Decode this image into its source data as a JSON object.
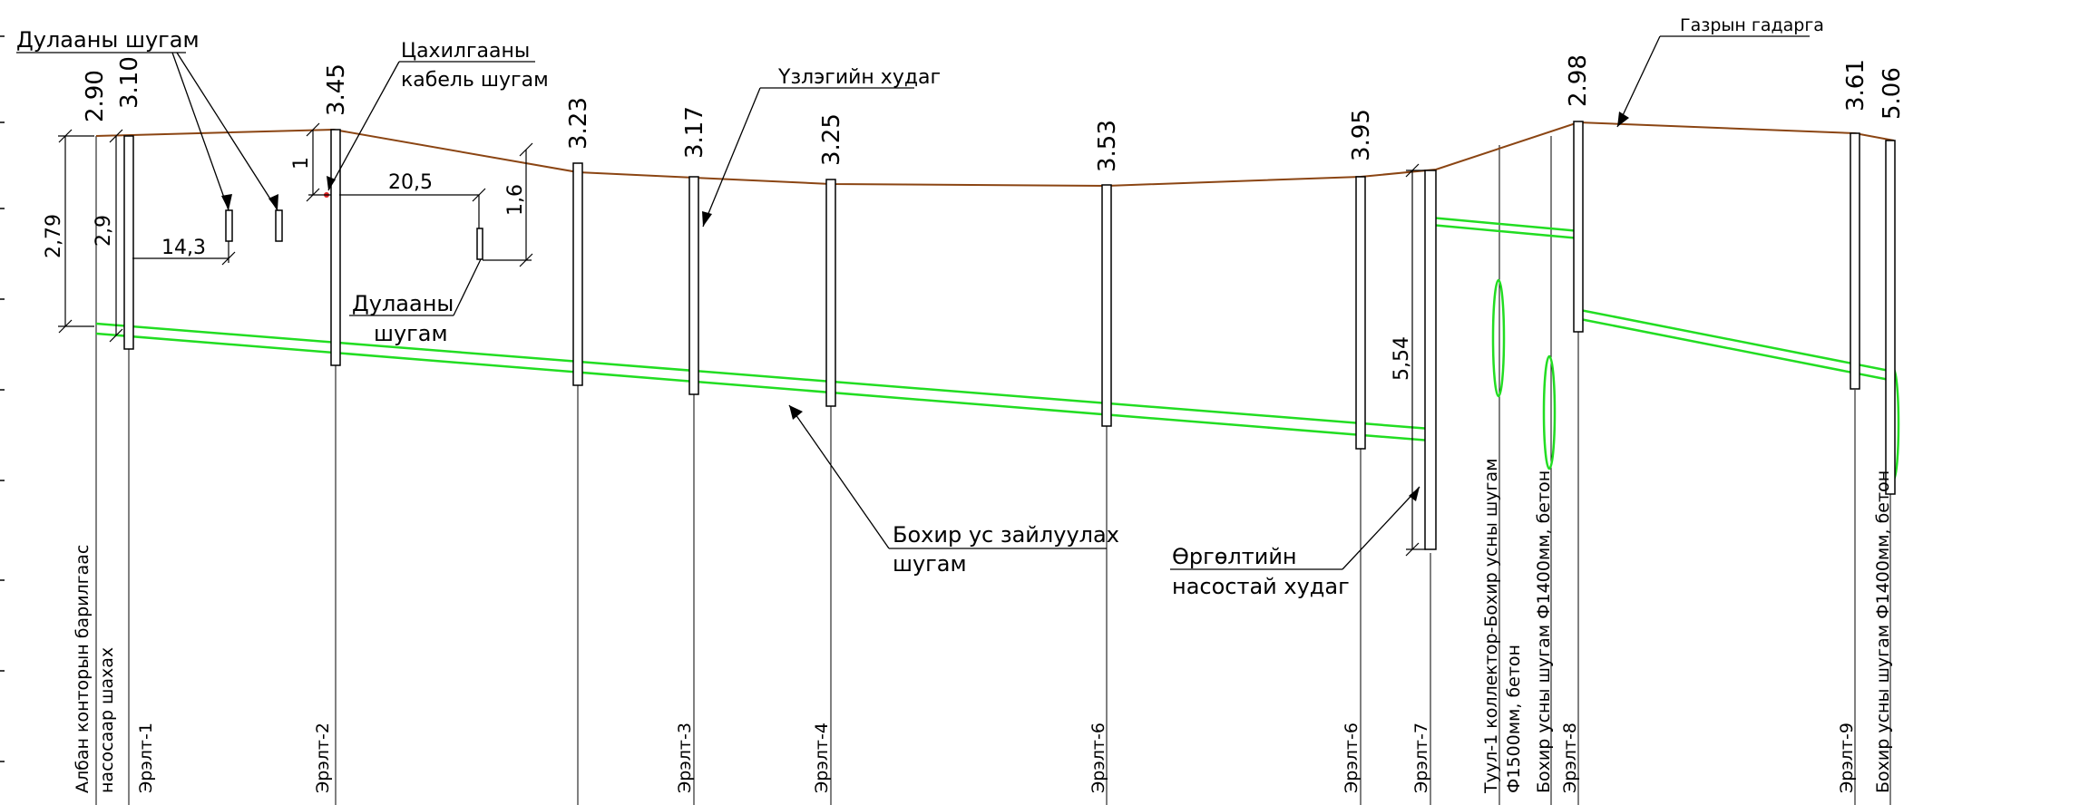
{
  "callouts": {
    "heat_pipe_top": "Дулааны шугам",
    "telecom_1": "Цахилгааны",
    "telecom_2": "кабель шугам",
    "well": "Үзлэгийн худаг",
    "ground": "Газрын гадарга",
    "heat_pipe_mid_1": "Дулааны",
    "heat_pipe_mid_2": "шугам",
    "sewer_1": "Бохир ус зайлуулах",
    "sewer_2": "шугам",
    "pump_well_1": "Өргөлтийн",
    "pump_well_2": "насостай худаг"
  },
  "elevations": {
    "e0": "2.90",
    "e1": "3.10",
    "e2": "3.45",
    "e3": "3.23",
    "e4": "3.17",
    "e5": "3.25",
    "e6": "3.53",
    "e7": "3.95",
    "e8": "2.98",
    "e9": "3.61",
    "e10": "5.06"
  },
  "dimensions": {
    "d279": "2,79",
    "d29": "2,9",
    "d143": "14,3",
    "d1": "1",
    "d205": "20,5",
    "d16": "1,6",
    "d554": "5,54"
  },
  "columns": {
    "c0a": "Албан конторын барилгаас",
    "c0b": "насосаар шахах",
    "c1": "Эрэлт-1",
    "c2": "Эрэлт-2",
    "c3": "Эрэлт-3",
    "c4": "Эрэлт-4",
    "c5": "Эрэлт-6",
    "c6": "Эрэлт-6",
    "c7": "Эрэлт-7",
    "c8a": "Туул-1 коллектор-Бохир усны шугам",
    "c8b": "Ф1500мм, бетон",
    "c9": "Бохир усны шугам Ф1400мм, бетон",
    "c10": "Эрэлт-8",
    "c11": "Эрэлт-9",
    "c12": "Бохир усны шугам Ф1400мм, бетон"
  },
  "colors": {
    "ground_line": "#8B4513",
    "pipe": "#22dd22",
    "telecom_marker": "#dd2222"
  }
}
